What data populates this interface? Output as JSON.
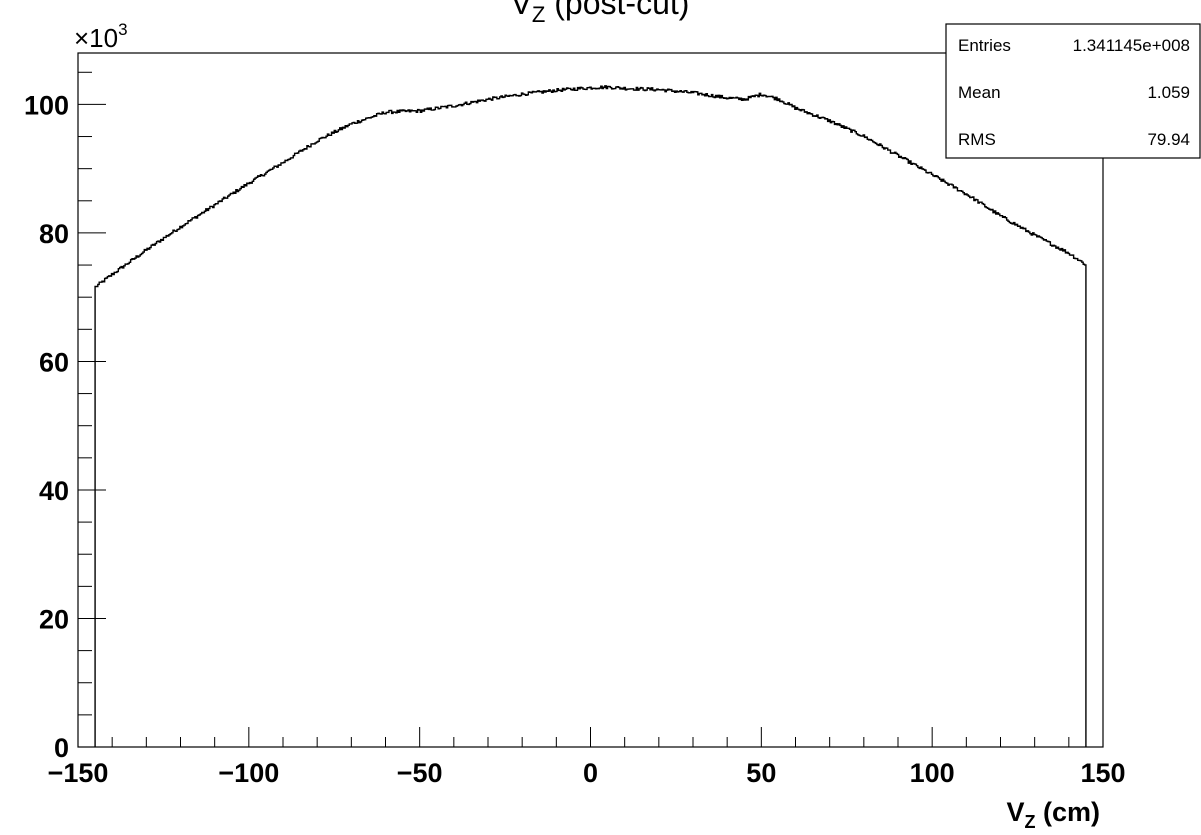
{
  "chart_data": {
    "type": "histogram",
    "title": {
      "main": "V",
      "sub": "Z",
      "rest": " (post-cut)"
    },
    "xlabel": {
      "main": "V",
      "sub": "Z",
      "rest": " (cm)"
    },
    "ylabel": "",
    "y_multiplier": {
      "base": "×10",
      "exp": "3"
    },
    "xlim": [
      -150,
      150
    ],
    "ylim": [
      0,
      108
    ],
    "x_ticks": [
      -150,
      -100,
      -50,
      0,
      50,
      100,
      150
    ],
    "x_tick_labels": [
      "−150",
      "−100",
      "−50",
      "0",
      "50",
      "100",
      "150"
    ],
    "y_ticks": [
      0,
      20,
      40,
      60,
      80,
      100
    ],
    "y_tick_labels": [
      "0",
      "20",
      "40",
      "60",
      "80",
      "100"
    ],
    "grid": false,
    "legend": "none",
    "range": [
      -145,
      145
    ],
    "line_color": "#000000",
    "points": [
      [
        -145,
        71.6
      ],
      [
        -140,
        73.6
      ],
      [
        -130,
        77.4
      ],
      [
        -120,
        81.0
      ],
      [
        -110,
        84.4
      ],
      [
        -100,
        87.8
      ],
      [
        -90,
        91.0
      ],
      [
        -80,
        94.4
      ],
      [
        -70,
        97.0
      ],
      [
        -60,
        98.8
      ],
      [
        -55,
        98.9
      ],
      [
        -50,
        99.0
      ],
      [
        -40,
        99.8
      ],
      [
        -30,
        100.8
      ],
      [
        -20,
        101.6
      ],
      [
        -10,
        102.2
      ],
      [
        0,
        102.6
      ],
      [
        5,
        102.7
      ],
      [
        10,
        102.5
      ],
      [
        20,
        102.3
      ],
      [
        30,
        101.8
      ],
      [
        40,
        101.0
      ],
      [
        45,
        100.8
      ],
      [
        50,
        101.6
      ],
      [
        55,
        100.8
      ],
      [
        60,
        99.4
      ],
      [
        70,
        97.4
      ],
      [
        80,
        95.0
      ],
      [
        90,
        92.0
      ],
      [
        100,
        89.0
      ],
      [
        110,
        86.0
      ],
      [
        120,
        82.6
      ],
      [
        130,
        79.6
      ],
      [
        140,
        76.8
      ],
      [
        145,
        75.0
      ]
    ],
    "stats_box": {
      "rows": [
        {
          "label": "Entries",
          "value": "1.341145e+008"
        },
        {
          "label": "Mean",
          "value": "1.059"
        },
        {
          "label": "RMS",
          "value": "79.94"
        }
      ]
    }
  }
}
